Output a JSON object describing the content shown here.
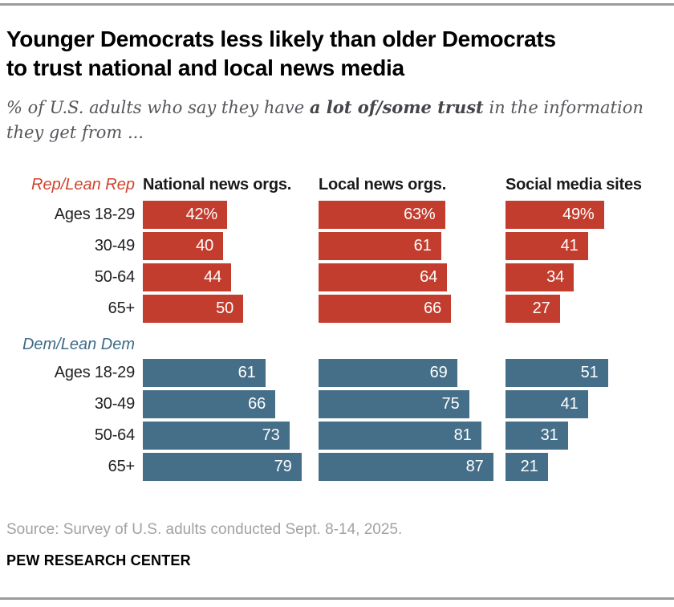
{
  "header": {
    "title_line1": "Younger Democrats less likely than older Democrats",
    "title_line2": "to trust national and local news media",
    "subtitle_pre": "% of U.S. adults who say they have ",
    "subtitle_bold": "a lot of/some trust",
    "subtitle_post": " in the information",
    "subtitle_line2": "they get from ..."
  },
  "chart_data": {
    "type": "bar",
    "orientation": "horizontal",
    "unit": "%",
    "value_range": [
      0,
      100
    ],
    "columns": [
      "National news orgs.",
      "Local news orgs.",
      "Social media sites"
    ],
    "age_groups": [
      "Ages 18-29",
      "30-49",
      "50-64",
      "65+"
    ],
    "groups": [
      {
        "label": "Rep/Lean Rep",
        "bar_color": "#c33d2e",
        "label_color": "#d0442e",
        "rows": [
          {
            "age": "Ages 18-29",
            "values": [
              42,
              63,
              49
            ],
            "labels": [
              "42%",
              "63%",
              "49%"
            ]
          },
          {
            "age": "30-49",
            "values": [
              40,
              61,
              41
            ],
            "labels": [
              "40",
              "61",
              "41"
            ]
          },
          {
            "age": "50-64",
            "values": [
              44,
              64,
              34
            ],
            "labels": [
              "44",
              "64",
              "34"
            ]
          },
          {
            "age": "65+",
            "values": [
              50,
              66,
              27
            ],
            "labels": [
              "50",
              "66",
              "27"
            ]
          }
        ]
      },
      {
        "label": "Dem/Lean Dem",
        "bar_color": "#456e88",
        "label_color": "#3e6a89",
        "rows": [
          {
            "age": "Ages 18-29",
            "values": [
              61,
              69,
              51
            ],
            "labels": [
              "61",
              "69",
              "51"
            ]
          },
          {
            "age": "30-49",
            "values": [
              66,
              75,
              41
            ],
            "labels": [
              "66",
              "75",
              "41"
            ]
          },
          {
            "age": "50-64",
            "values": [
              73,
              81,
              31
            ],
            "labels": [
              "73",
              "81",
              "31"
            ]
          },
          {
            "age": "65+",
            "values": [
              79,
              87,
              21
            ],
            "labels": [
              "79",
              "87",
              "21"
            ]
          }
        ]
      }
    ]
  },
  "footer": {
    "source": "Source: Survey of U.S. adults conducted Sept. 8-14, 2025.",
    "brand": "PEW RESEARCH CENTER"
  }
}
